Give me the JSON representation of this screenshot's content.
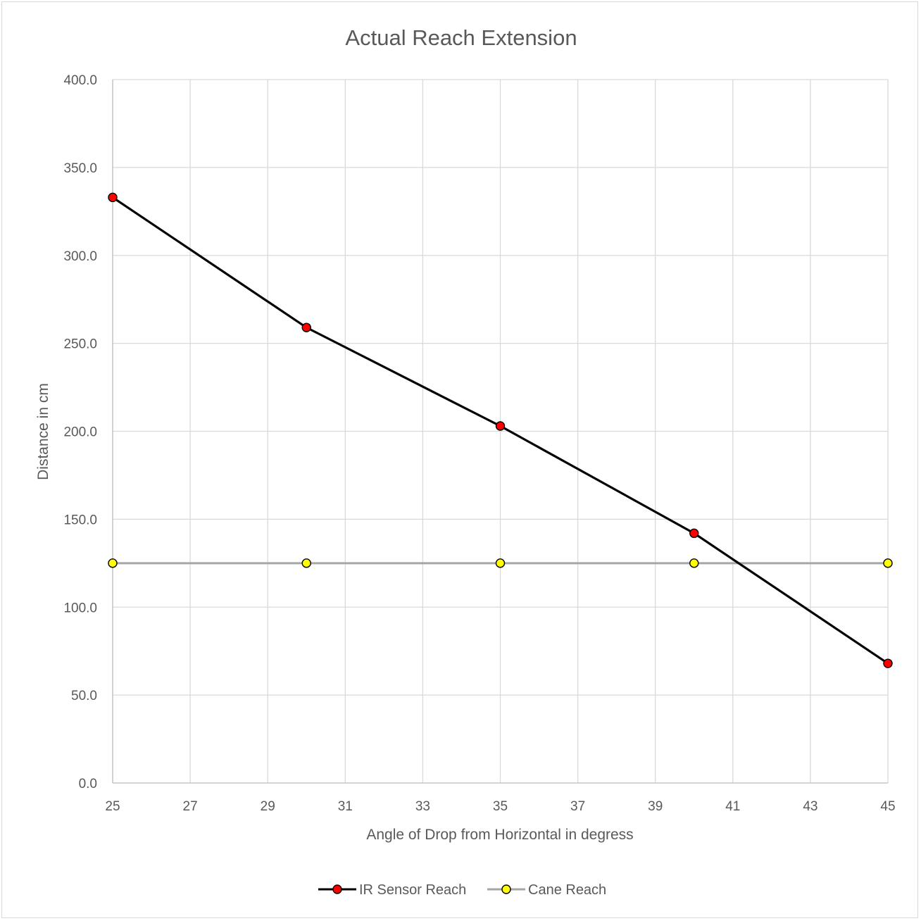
{
  "chart_data": {
    "type": "line",
    "title": "Actual Reach Extension",
    "xlabel": "Angle of Drop from Horizontal in degress",
    "ylabel": "Distance in cm",
    "xlim": [
      25,
      45
    ],
    "ylim": [
      0,
      400
    ],
    "x_ticks": [
      "25",
      "27",
      "29",
      "31",
      "33",
      "35",
      "37",
      "39",
      "41",
      "43",
      "45"
    ],
    "y_ticks": [
      "0.0",
      "50.0",
      "100.0",
      "150.0",
      "200.0",
      "250.0",
      "300.0",
      "350.0",
      "400.0"
    ],
    "grid": true,
    "legend": "bottom",
    "series": [
      {
        "name": "IR Sensor Reach",
        "line_color": "#000000",
        "marker_color": "#ff0000",
        "x": [
          25,
          30,
          35,
          40,
          45
        ],
        "y": [
          333,
          259,
          203,
          142,
          68
        ]
      },
      {
        "name": "Cane Reach",
        "line_color": "#a6a6a6",
        "marker_color": "#ffff00",
        "x": [
          25,
          30,
          35,
          40,
          45
        ],
        "y": [
          125,
          125,
          125,
          125,
          125
        ]
      }
    ]
  }
}
